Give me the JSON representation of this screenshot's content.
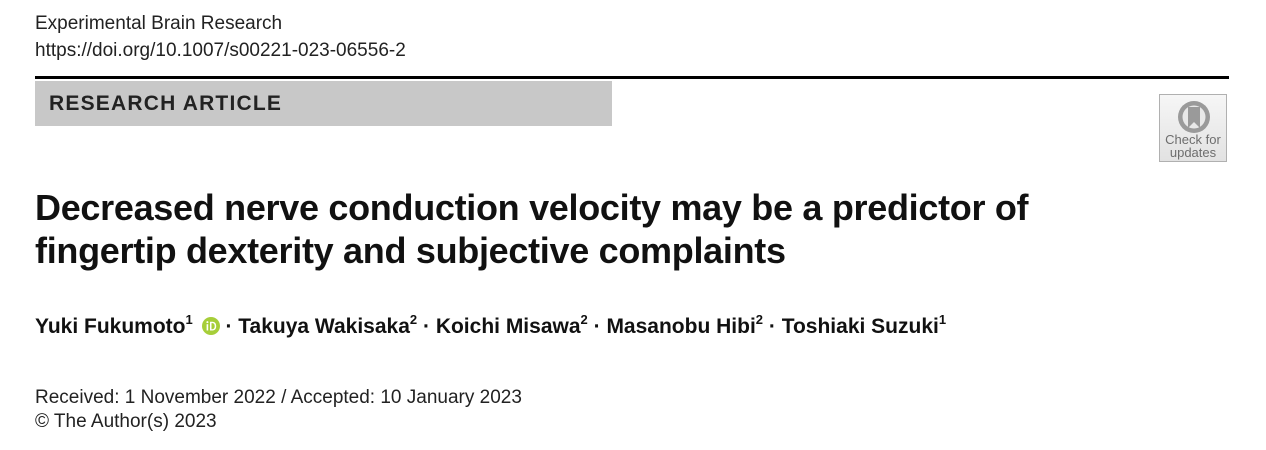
{
  "header": {
    "journal": "Experimental Brain Research",
    "doi": "https://doi.org/10.1007/s00221-023-06556-2"
  },
  "article_type": "RESEARCH ARTICLE",
  "check_updates": {
    "line1": "Check for",
    "line2": "updates",
    "icon": "bookmark-icon"
  },
  "title": "Decreased nerve conduction velocity may be a predictor of fingertip dexterity and subjective complaints",
  "authors": [
    {
      "name": "Yuki Fukumoto",
      "affiliation": "1",
      "orcid": true
    },
    {
      "name": "Takuya Wakisaka",
      "affiliation": "2"
    },
    {
      "name": "Koichi Misawa",
      "affiliation": "2"
    },
    {
      "name": "Masanobu Hibi",
      "affiliation": "2"
    },
    {
      "name": "Toshiaki Suzuki",
      "affiliation": "1"
    }
  ],
  "author_separator": "·",
  "orcid_color": "#a6ce39",
  "dates": "Received: 1 November 2022 / Accepted: 10 January 2023",
  "copyright": "© The Author(s) 2023"
}
